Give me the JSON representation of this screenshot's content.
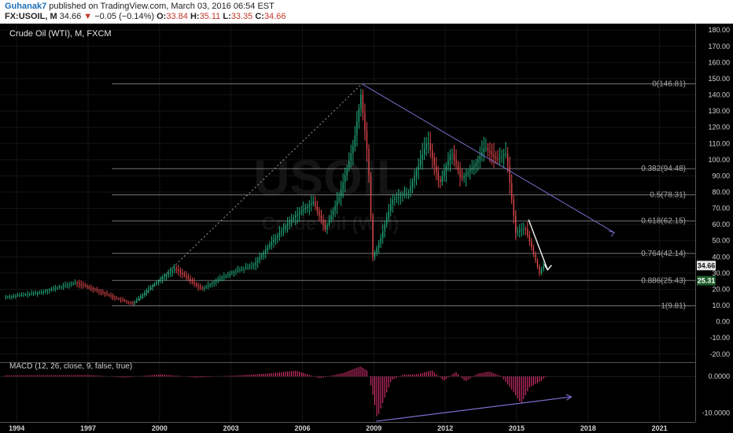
{
  "header": {
    "author": "Guhanak7",
    "published": "published on TradingView.com, March 03, 2016 06:54 EST",
    "symbol": "FX:USOIL, M",
    "last": "34.66",
    "change": "−0.05 (−0.14%)",
    "o_label": "O:",
    "o_value": "33.84",
    "h_label": "H:",
    "h_value": "35.11",
    "l_label": "L:",
    "l_value": "33.35",
    "c_label": "C:",
    "c_value": "34.66"
  },
  "colors": {
    "background": "#000000",
    "up": "#1fa87a",
    "down": "#e0474c",
    "fib": "#9a9a9a",
    "trend": "#7b6fd0",
    "macd_hist": "#d8306e",
    "price_badge": "#e9e9e9",
    "low_badge": "#1c5d2a"
  },
  "chart_data": [
    {
      "type": "candlestick",
      "title": "Crude Oil (WTI), M, FXCM",
      "watermark": "USOIL",
      "watermark_sub": "Crude Oil (WTI)",
      "x_ticks": [
        "1994",
        "1997",
        "2000",
        "2003",
        "2006",
        "2009",
        "2012",
        "2015",
        "2018",
        "2021"
      ],
      "y_ticks": [
        180,
        170,
        160,
        150,
        140,
        130,
        120,
        110,
        100,
        90,
        80,
        70,
        60,
        50,
        40,
        30,
        20,
        10,
        0,
        -10,
        -20
      ],
      "y_tick_labels": [
        "180.00",
        "170.00",
        "160.00",
        "150.00",
        "140.00",
        "130.00",
        "120.00",
        "110.00",
        "100.00",
        "90.00",
        "80.00",
        "70.00",
        "60.00",
        "50.00",
        "40.00",
        "30.00",
        "20.00",
        "10.00",
        "0.00",
        "-10.00",
        "-20.00"
      ],
      "ylim": [
        -24,
        184
      ],
      "xlim": [
        1993.3,
        2022.5
      ],
      "price_path": [
        [
          1993.5,
          15
        ],
        [
          1995,
          18
        ],
        [
          1996.5,
          24
        ],
        [
          1997.3,
          20
        ],
        [
          1998.3,
          14
        ],
        [
          1998.9,
          11
        ],
        [
          1999.7,
          22
        ],
        [
          2000.7,
          33
        ],
        [
          2001.8,
          20
        ],
        [
          2002.5,
          26
        ],
        [
          2003.2,
          31
        ],
        [
          2004,
          35
        ],
        [
          2004.8,
          50
        ],
        [
          2005.7,
          65
        ],
        [
          2006.5,
          74
        ],
        [
          2007,
          57
        ],
        [
          2007.6,
          78
        ],
        [
          2008.2,
          110
        ],
        [
          2008.5,
          140
        ],
        [
          2008.8,
          100
        ],
        [
          2009,
          40
        ],
        [
          2009.3,
          50
        ],
        [
          2009.8,
          75
        ],
        [
          2010.5,
          80
        ],
        [
          2011.3,
          112
        ],
        [
          2011.8,
          85
        ],
        [
          2012.3,
          105
        ],
        [
          2012.7,
          88
        ],
        [
          2013.3,
          97
        ],
        [
          2013.7,
          108
        ],
        [
          2014.2,
          100
        ],
        [
          2014.6,
          104
        ],
        [
          2015,
          55
        ],
        [
          2015.4,
          58
        ],
        [
          2015.7,
          44
        ],
        [
          2016,
          30
        ],
        [
          2016.17,
          34.66
        ]
      ],
      "fibonacci": [
        {
          "level": "0",
          "value": 146.81,
          "label": "0(146.81)"
        },
        {
          "level": "0.382",
          "value": 94.48,
          "label": "0.382(94.48)"
        },
        {
          "level": "0.5",
          "value": 78.31,
          "label": "0.5(78.31)"
        },
        {
          "level": "0.618",
          "value": 62.15,
          "label": "0.618(62.15)"
        },
        {
          "level": "0.764",
          "value": 42.14,
          "label": "0.764(42.14)"
        },
        {
          "level": "0.886",
          "value": 25.43,
          "label": "0.886(25.43)"
        },
        {
          "level": "1",
          "value": 9.81,
          "label": "1(9.81)"
        }
      ],
      "lines": [
        {
          "kind": "fib-trend",
          "from": [
            1998.9,
            9.81
          ],
          "to": [
            2008.5,
            146.81
          ]
        },
        {
          "kind": "resistance-trendline",
          "from": [
            2008.5,
            146.81
          ],
          "to": [
            2019.1,
            55
          ]
        },
        {
          "kind": "projection",
          "from": [
            2015.5,
            63
          ],
          "to": [
            2016.3,
            32
          ]
        }
      ],
      "price_labels": [
        {
          "value": 34.66,
          "text": "34.66"
        },
        {
          "value": 25.31,
          "text": "25.31"
        }
      ]
    },
    {
      "type": "histogram",
      "title": "MACD (12, 26, close, 9, false, true)",
      "y_ticks": [
        0,
        -10
      ],
      "y_tick_labels": [
        "0.0000",
        "-10.0000"
      ],
      "ylim": [
        -12.5,
        3.5
      ],
      "histogram_path": [
        [
          1993.5,
          0.3
        ],
        [
          1997,
          0.4
        ],
        [
          1998.5,
          -0.3
        ],
        [
          2000,
          0.6
        ],
        [
          2001.5,
          -0.3
        ],
        [
          2003,
          0.2
        ],
        [
          2004.5,
          0.8
        ],
        [
          2005.7,
          1.6
        ],
        [
          2006.7,
          -0.5
        ],
        [
          2007.7,
          1.0
        ],
        [
          2008.4,
          2.8
        ],
        [
          2008.7,
          1.5
        ],
        [
          2008.95,
          -6.0
        ],
        [
          2009.1,
          -11.5
        ],
        [
          2009.35,
          -7.0
        ],
        [
          2009.7,
          -1.0
        ],
        [
          2010.2,
          0.5
        ],
        [
          2010.8,
          0.6
        ],
        [
          2011.4,
          1.7
        ],
        [
          2011.9,
          -1.2
        ],
        [
          2012.4,
          1.3
        ],
        [
          2012.8,
          -1.4
        ],
        [
          2013.3,
          0.7
        ],
        [
          2013.8,
          1.4
        ],
        [
          2014.3,
          0.1
        ],
        [
          2014.8,
          -4.0
        ],
        [
          2015.15,
          -7.5
        ],
        [
          2015.5,
          -3.0
        ],
        [
          2016.0,
          -1.2
        ],
        [
          2016.17,
          -0.2
        ]
      ],
      "lines": [
        {
          "kind": "bullish-divergence",
          "from": [
            2009.1,
            -12.3
          ],
          "to": [
            2017.3,
            -5.6
          ]
        }
      ]
    }
  ]
}
